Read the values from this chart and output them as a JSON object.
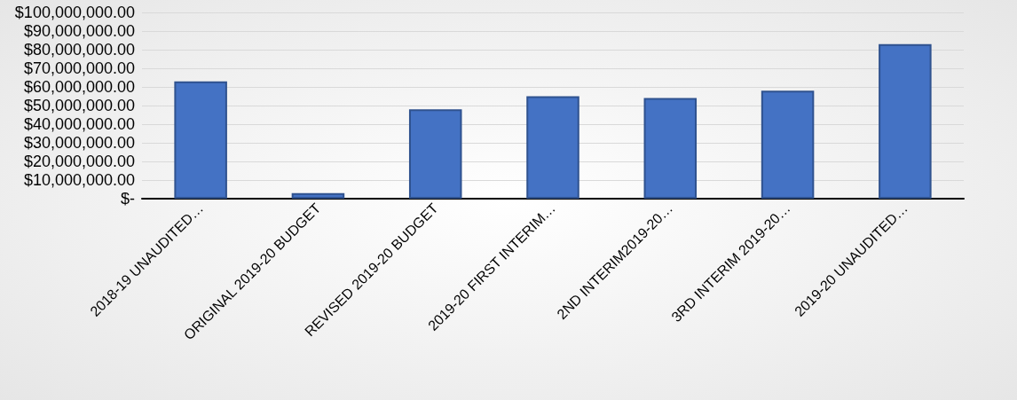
{
  "chart_data": {
    "type": "bar",
    "categories": [
      "2018-19 UNAUDITED…",
      "ORIGINAL 2019-20 BUDGET",
      "REVISED 2019-20 BUDGET",
      "2019-20 FIRST INTERIM…",
      "2ND INTERIM2019-20…",
      "3RD INTERIM 2019-20…",
      "2019-20 UNAUDITED…"
    ],
    "values": [
      63000000,
      3000000,
      48000000,
      55000000,
      54000000,
      58000000,
      83000000
    ],
    "color": "#4472c4",
    "ylim": [
      0,
      100000000
    ],
    "yticks": [
      {
        "value": 0,
        "label": "$-"
      },
      {
        "value": 10000000,
        "label": "$10,000,000.00"
      },
      {
        "value": 20000000,
        "label": "$20,000,000.00"
      },
      {
        "value": 30000000,
        "label": "$30,000,000.00"
      },
      {
        "value": 40000000,
        "label": "$40,000,000.00"
      },
      {
        "value": 50000000,
        "label": "$50,000,000.00"
      },
      {
        "value": 60000000,
        "label": "$60,000,000.00"
      },
      {
        "value": 70000000,
        "label": "$70,000,000.00"
      },
      {
        "value": 80000000,
        "label": "$80,000,000.00"
      },
      {
        "value": 90000000,
        "label": "$90,000,000.00"
      },
      {
        "value": 100000000,
        "label": "$100,000,000.00"
      }
    ],
    "grid": "y"
  }
}
